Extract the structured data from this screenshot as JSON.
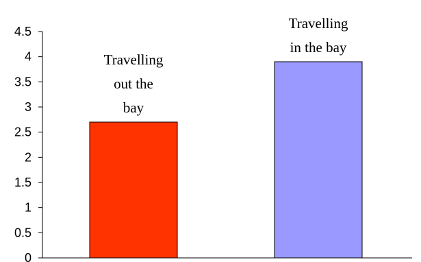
{
  "chart_data": {
    "type": "bar",
    "title": "",
    "xlabel": "",
    "ylabel": "",
    "ylim": [
      0,
      4.5
    ],
    "yticks": [
      0,
      0.5,
      1,
      1.5,
      2,
      2.5,
      3,
      3.5,
      4,
      4.5
    ],
    "ytick_labels": [
      "0",
      "0.5",
      "1",
      "1.5",
      "2",
      "2.5",
      "3",
      "3.5",
      "4",
      "4.5"
    ],
    "grid": false,
    "legend": "none",
    "categories": [
      "Travelling out the bay",
      "Travelling in the bay"
    ],
    "label_lines": [
      [
        "Travelling",
        "out the",
        "bay"
      ],
      [
        "Travelling",
        "in the bay"
      ]
    ],
    "values": [
      2.7,
      3.9
    ],
    "colors": [
      "#ff3300",
      "#9999ff"
    ]
  }
}
